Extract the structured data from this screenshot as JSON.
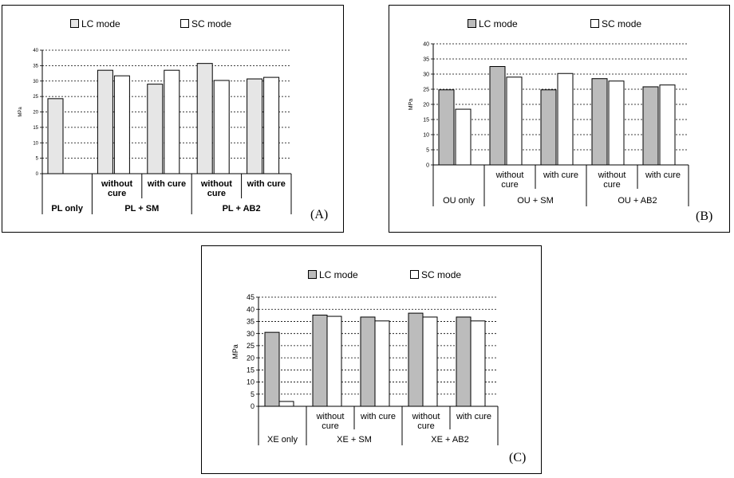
{
  "colors": {
    "lc_light": "#e6e6e6",
    "lc_dark": "#bcbcbc",
    "sc": "#ffffff",
    "axis": "#000000"
  },
  "chart_data": [
    {
      "type": "bar",
      "panel_label": "(A)",
      "lc_color": "#e6e6e6",
      "ylabel": "MPa",
      "ylim": [
        0,
        40
      ],
      "yticks": [
        0,
        5,
        10,
        15,
        20,
        25,
        30,
        35,
        40
      ],
      "grid": true,
      "legend": "top",
      "series": [
        {
          "name": "LC mode",
          "values": [
            24.3,
            33.5,
            29.0,
            35.7,
            30.7
          ]
        },
        {
          "name": "SC mode",
          "values": [
            null,
            31.7,
            33.5,
            30.2,
            31.2
          ]
        }
      ],
      "categories": [
        "",
        "without\ncure",
        "with cure",
        "without\ncure",
        "with cure"
      ],
      "groups": [
        {
          "label": "PL only",
          "span": 1
        },
        {
          "label": "PL + SM",
          "span": 2
        },
        {
          "label": "PL + AB2",
          "span": 2
        }
      ]
    },
    {
      "type": "bar",
      "panel_label": "(B)",
      "lc_color": "#bcbcbc",
      "ylabel": "MPa",
      "ylim": [
        0,
        40
      ],
      "yticks": [
        0,
        5,
        10,
        15,
        20,
        25,
        30,
        35,
        40
      ],
      "grid": true,
      "legend": "top",
      "series": [
        {
          "name": "LC mode",
          "values": [
            24.8,
            32.5,
            24.8,
            28.5,
            25.8
          ]
        },
        {
          "name": "SC mode",
          "values": [
            18.4,
            29.0,
            30.2,
            27.7,
            26.4
          ]
        }
      ],
      "categories": [
        "",
        "without\ncure",
        "with cure",
        "without\ncure",
        "with cure"
      ],
      "groups": [
        {
          "label": "OU only",
          "span": 1
        },
        {
          "label": "OU + SM",
          "span": 2
        },
        {
          "label": "OU + AB2",
          "span": 2
        }
      ]
    },
    {
      "type": "bar",
      "panel_label": "(C)",
      "lc_color": "#bcbcbc",
      "ylabel": "MPa",
      "ylim": [
        0,
        45
      ],
      "yticks": [
        0,
        5,
        10,
        15,
        20,
        25,
        30,
        35,
        40,
        45
      ],
      "grid": true,
      "legend": "top",
      "series": [
        {
          "name": "LC mode",
          "values": [
            30.5,
            37.6,
            36.8,
            38.4,
            36.8
          ]
        },
        {
          "name": "SC mode",
          "values": [
            2.0,
            37.1,
            35.2,
            36.8,
            35.2
          ]
        }
      ],
      "categories": [
        "",
        "without\ncure",
        "with cure",
        "without\ncure",
        "with cure"
      ],
      "groups": [
        {
          "label": "XE only",
          "span": 1
        },
        {
          "label": "XE + SM",
          "span": 2
        },
        {
          "label": "XE + AB2",
          "span": 2
        }
      ]
    }
  ]
}
